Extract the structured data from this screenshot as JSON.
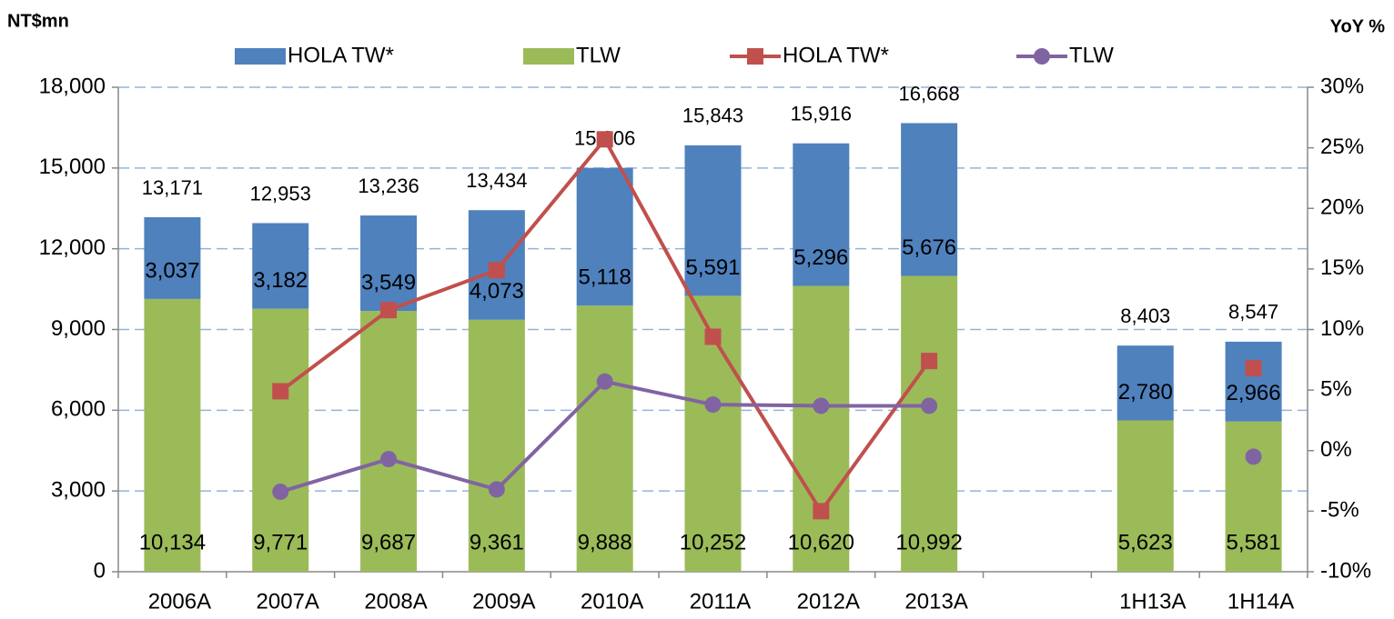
{
  "chart_data": {
    "type": "bar",
    "stacked": true,
    "y_label": "NT$mn",
    "y2_label": "YoY %",
    "categories": [
      "2006A",
      "2007A",
      "2008A",
      "2009A",
      "2010A",
      "2011A",
      "2012A",
      "2013A",
      null,
      "1H13A",
      "1H14A"
    ],
    "series": [
      {
        "name": "TLW",
        "type": "bar",
        "color": "#9bbb59",
        "legend_order": 1,
        "values": [
          10134,
          9771,
          9687,
          9361,
          9888,
          10252,
          10620,
          10992,
          null,
          5623,
          5581
        ],
        "value_labels": [
          "10,134",
          "9,771",
          "9,687",
          "9,361",
          "9,888",
          "10,252",
          "10,620",
          "10,992",
          null,
          "5,623",
          "5,581"
        ]
      },
      {
        "name": "HOLA TW*",
        "type": "bar",
        "color": "#4f81bd",
        "legend_order": 0,
        "values": [
          3037,
          3182,
          3549,
          4073,
          5118,
          5591,
          5296,
          5676,
          null,
          2780,
          2966
        ],
        "value_labels": [
          "3,037",
          "3,182",
          "3,549",
          "4,073",
          "5,118",
          "5,591",
          "5,296",
          "5,676",
          null,
          "2,780",
          "2,966"
        ]
      },
      {
        "name": "HOLA TW*",
        "type": "line",
        "axis": "y2",
        "marker": "square",
        "color": "#c0504d",
        "legend_order": 2,
        "values": [
          null,
          4.9,
          11.6,
          14.9,
          25.7,
          9.4,
          -5.0,
          7.4,
          null,
          null,
          6.8
        ]
      },
      {
        "name": "TLW",
        "type": "line",
        "axis": "y2",
        "marker": "circle",
        "color": "#8064a2",
        "legend_order": 3,
        "values": [
          null,
          -3.4,
          -0.7,
          -3.2,
          5.7,
          3.8,
          3.7,
          3.7,
          null,
          null,
          -0.5
        ]
      }
    ],
    "totals": [
      13171,
      12953,
      13236,
      13434,
      15006,
      15843,
      15916,
      16668,
      null,
      8403,
      8547
    ],
    "total_labels": [
      "13,171",
      "12,953",
      "13,236",
      "13,434",
      "15,006",
      "15,843",
      "15,916",
      "16,668",
      null,
      "8,403",
      "8,547"
    ],
    "ylim": [
      0,
      18000
    ],
    "yticks": [
      0,
      {
        "value": 3000,
        "label": "3,000"
      },
      {
        "value": 6000,
        "label": "6,000"
      },
      {
        "value": 9000,
        "label": "9,000"
      },
      {
        "value": 12000,
        "label": "12,000"
      },
      {
        "value": 15000,
        "label": "15,000"
      },
      {
        "value": 18000,
        "label": "18,000"
      }
    ],
    "y2lim": [
      -10,
      30
    ],
    "y2ticks": [
      {
        "value": -10,
        "label": "-10%"
      },
      {
        "value": -5,
        "label": "-5%"
      },
      {
        "value": 0,
        "label": "0%"
      },
      {
        "value": 5,
        "label": "5%"
      },
      {
        "value": 10,
        "label": "10%"
      },
      {
        "value": 15,
        "label": "15%"
      },
      {
        "value": 20,
        "label": "20%"
      },
      {
        "value": 25,
        "label": "25%"
      },
      {
        "value": 30,
        "label": "30%"
      }
    ],
    "grid": true
  }
}
